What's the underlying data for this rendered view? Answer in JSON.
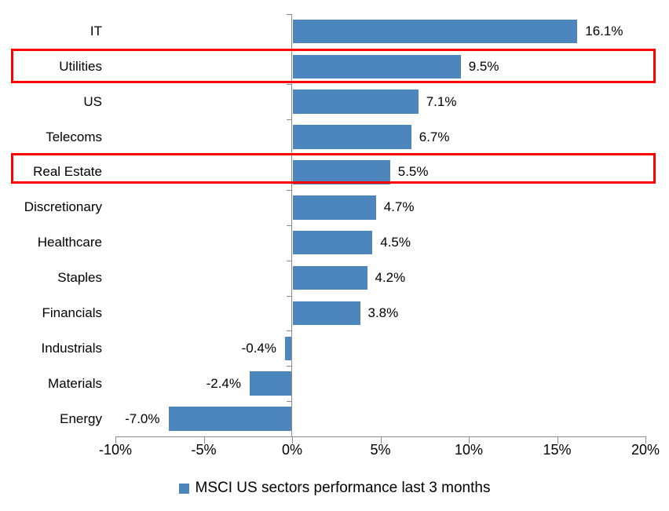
{
  "chart_data": {
    "type": "bar",
    "orientation": "horizontal",
    "title": "",
    "categories": [
      "IT",
      "Utilities",
      "US",
      "Telecoms",
      "Real Estate",
      "Discretionary",
      "Healthcare",
      "Staples",
      "Financials",
      "Industrials",
      "Materials",
      "Energy"
    ],
    "values": [
      16.1,
      9.5,
      7.1,
      6.7,
      5.5,
      4.7,
      4.5,
      4.2,
      3.8,
      -0.4,
      -2.4,
      -7.0
    ],
    "value_labels": [
      "16.1%",
      "9.5%",
      "7.1%",
      "6.7%",
      "5.5%",
      "4.7%",
      "4.5%",
      "4.2%",
      "3.8%",
      "-0.4%",
      "-2.4%",
      "-7.0%"
    ],
    "x_ticks": [
      -10,
      -5,
      0,
      5,
      10,
      15,
      20
    ],
    "x_tick_labels": [
      "-10%",
      "-5%",
      "0%",
      "5%",
      "10%",
      "15%",
      "20%"
    ],
    "xlim": [
      -10,
      20
    ],
    "grid": false,
    "legend_position": "bottom",
    "legend": [
      {
        "label": "MSCI US sectors performance last 3 months",
        "color": "#4D86BD"
      }
    ],
    "highlighted_categories": [
      "Utilities",
      "Real Estate"
    ],
    "colors": {
      "bar": "#4D86BD",
      "axis": "#8C8C8C",
      "highlight_box": "#FF0000",
      "text": "#000000",
      "background": "#FFFFFF"
    }
  }
}
